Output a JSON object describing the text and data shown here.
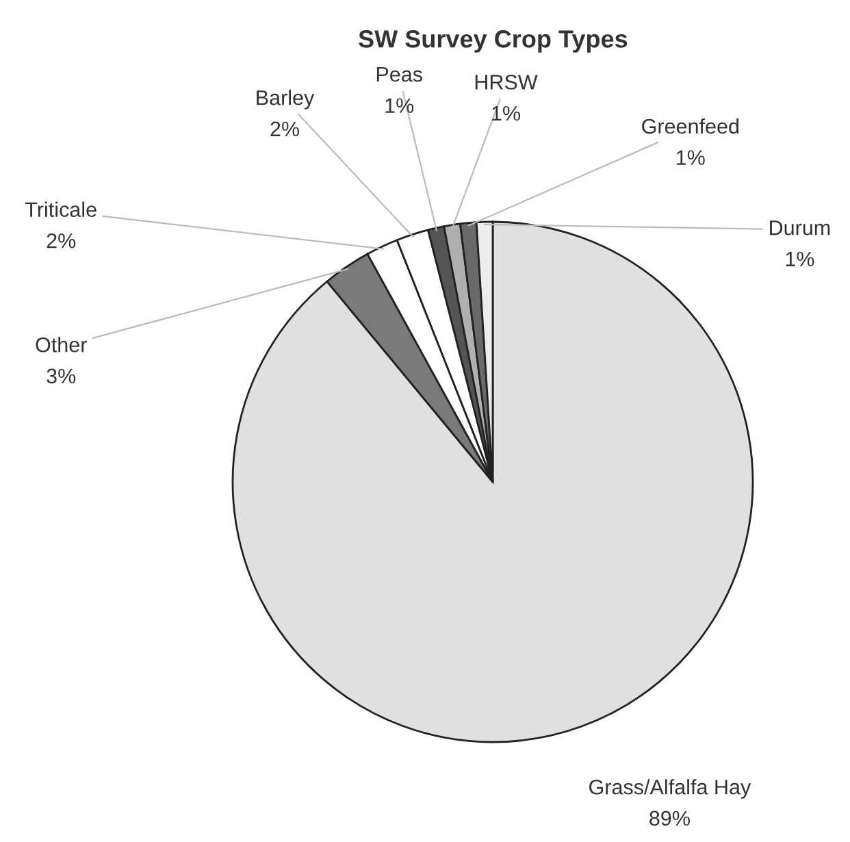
{
  "chart_data": {
    "type": "pie",
    "title": "SW Survey Crop Types",
    "categories": [
      "Grass/Alfalfa Hay",
      "Other",
      "Triticale",
      "Barley",
      "Peas",
      "HRSW",
      "Greenfeed",
      "Durum"
    ],
    "values": [
      89,
      3,
      2,
      2,
      1,
      1,
      1,
      1
    ],
    "value_labels": [
      "89%",
      "3%",
      "2%",
      "2%",
      "1%",
      "1%",
      "1%",
      "1%"
    ],
    "colors": [
      "#e0e0e0",
      "#7a7a7a",
      "#ffffff",
      "#ffffff",
      "#555555",
      "#b0b0b0",
      "#6a6a6a",
      "#ececec"
    ],
    "legend": false
  }
}
